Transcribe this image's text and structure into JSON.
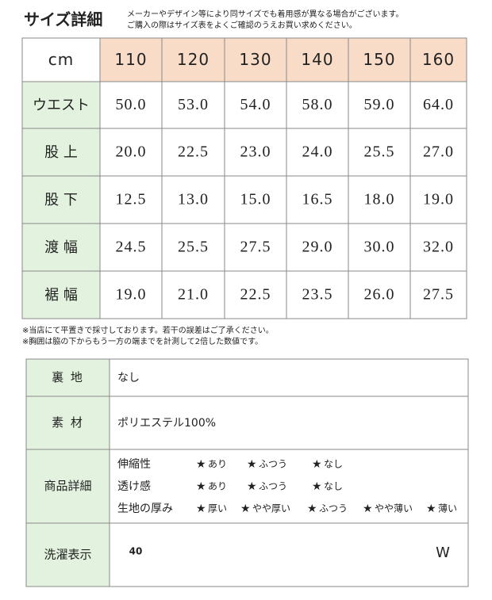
{
  "header": {
    "title": "サイズ詳細",
    "notes": [
      "メーカーやデザイン等により同サイズでも着用感が異なる場合がございます。",
      "ご購入の際はサイズ表をよくご確認のうえお買い求めください。"
    ]
  },
  "size_table": {
    "header": [
      "cm",
      "110",
      "120",
      "130",
      "140",
      "150",
      "160"
    ],
    "rows": [
      {
        "label": "ウエスト",
        "values": [
          "50.0",
          "53.0",
          "54.0",
          "58.0",
          "59.0",
          "64.0"
        ]
      },
      {
        "label": "股 上",
        "values": [
          "20.0",
          "22.5",
          "23.0",
          "24.0",
          "25.5",
          "27.0"
        ]
      },
      {
        "label": "股 下",
        "values": [
          "12.5",
          "13.0",
          "15.0",
          "16.5",
          "18.0",
          "19.0"
        ]
      },
      {
        "label": "渡 幅",
        "values": [
          "24.5",
          "25.5",
          "27.5",
          "29.0",
          "30.0",
          "32.0"
        ]
      },
      {
        "label": "裾 幅",
        "values": [
          "19.0",
          "21.0",
          "22.5",
          "23.5",
          "26.0",
          "27.5"
        ]
      }
    ]
  },
  "footnotes": [
    "※当店にて平置きで採寸しております。若干の誤差はご了承ください。",
    "※胸囲は脇の下からもう一方の端までを計測して2倍した数値です。"
  ],
  "details": {
    "lining": {
      "label": "裏 地",
      "value": "なし"
    },
    "material": {
      "label": "素 材",
      "value": "ポリエステル100%"
    },
    "product": {
      "label": "商品詳細",
      "features": [
        {
          "name": "伸縮性",
          "options": [
            "あり",
            "ふつう",
            "なし"
          ],
          "selected": 0
        },
        {
          "name": "透け感",
          "options": [
            "あり",
            "ふつう",
            "なし"
          ],
          "selected": 1
        },
        {
          "name": "生地の厚み",
          "options": [
            "厚い",
            "やや厚い",
            "ふつう",
            "やや薄い",
            "薄い"
          ],
          "selected": 3
        }
      ]
    },
    "care": {
      "label": "洗濯表示",
      "wash_temp": "40",
      "wet_clean": "W"
    }
  }
}
